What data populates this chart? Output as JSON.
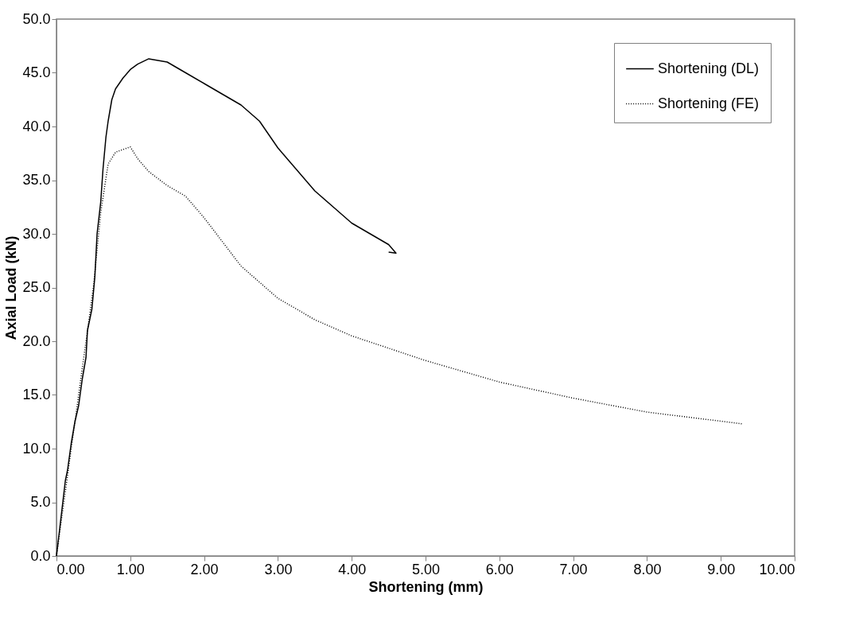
{
  "chart_data": {
    "type": "line",
    "xlabel": "Shortening (mm)",
    "ylabel": "Axial Load (kN)",
    "xlim": [
      0,
      10
    ],
    "ylim": [
      0,
      50
    ],
    "xticks": [
      {
        "value": 0,
        "label": "0.00"
      },
      {
        "value": 1,
        "label": "1.00"
      },
      {
        "value": 2,
        "label": "2.00"
      },
      {
        "value": 3,
        "label": "3.00"
      },
      {
        "value": 4,
        "label": "4.00"
      },
      {
        "value": 5,
        "label": "5.00"
      },
      {
        "value": 6,
        "label": "6.00"
      },
      {
        "value": 7,
        "label": "7.00"
      },
      {
        "value": 8,
        "label": "8.00"
      },
      {
        "value": 9,
        "label": "9.00"
      },
      {
        "value": 10,
        "label": "10.00"
      }
    ],
    "yticks": [
      {
        "value": 0,
        "label": "0.0"
      },
      {
        "value": 5,
        "label": "5.0"
      },
      {
        "value": 10,
        "label": "10.0"
      },
      {
        "value": 15,
        "label": "15.0"
      },
      {
        "value": 20,
        "label": "20.0"
      },
      {
        "value": 25,
        "label": "25.0"
      },
      {
        "value": 30,
        "label": "30.0"
      },
      {
        "value": 35,
        "label": "35.0"
      },
      {
        "value": 40,
        "label": "40.0"
      },
      {
        "value": 45,
        "label": "45.0"
      },
      {
        "value": 50,
        "label": "50.0"
      }
    ],
    "grid": false,
    "legend": "top right",
    "marker": "none",
    "series": [
      {
        "name": "Shortening (DL)",
        "color": "#000000",
        "line_style": "solid",
        "x": [
          0,
          0.12,
          0.15,
          0.2,
          0.25,
          0.3,
          0.35,
          0.4,
          0.42,
          0.48,
          0.52,
          0.55,
          0.6,
          0.63,
          0.67,
          0.7,
          0.75,
          0.8,
          0.9,
          1.0,
          1.1,
          1.25,
          1.5,
          1.75,
          2.0,
          2.25,
          2.5,
          2.75,
          3.0,
          3.25,
          3.5,
          3.75,
          4.0,
          4.25,
          4.5,
          4.6,
          4.5
        ],
        "values": [
          0,
          7.0,
          8.0,
          10.5,
          12.5,
          14,
          16.5,
          18.5,
          21,
          23,
          26,
          30,
          33,
          36,
          39,
          40.5,
          42.5,
          43.5,
          44.5,
          45.3,
          45.8,
          46.3,
          46,
          45,
          44,
          43,
          42,
          40.5,
          38,
          36,
          34,
          32.5,
          31,
          30,
          29,
          28.2,
          28.3
        ]
      },
      {
        "name": "Shortening (FE)",
        "color": "#000000",
        "line_style": "dotted",
        "x": [
          0,
          0.1,
          0.3,
          0.5,
          0.6,
          0.7,
          0.8,
          1.0,
          1.1,
          1.25,
          1.5,
          1.75,
          2.0,
          2.5,
          3.0,
          3.5,
          4.0,
          5.0,
          6.0,
          7.0,
          8.0,
          9.3
        ],
        "values": [
          0,
          5,
          15,
          25,
          32,
          36.5,
          37.6,
          38.1,
          37,
          35.8,
          34.5,
          33.5,
          31.5,
          27,
          24,
          22,
          20.5,
          18.2,
          16.2,
          14.7,
          13.4,
          12.3
        ]
      }
    ]
  }
}
